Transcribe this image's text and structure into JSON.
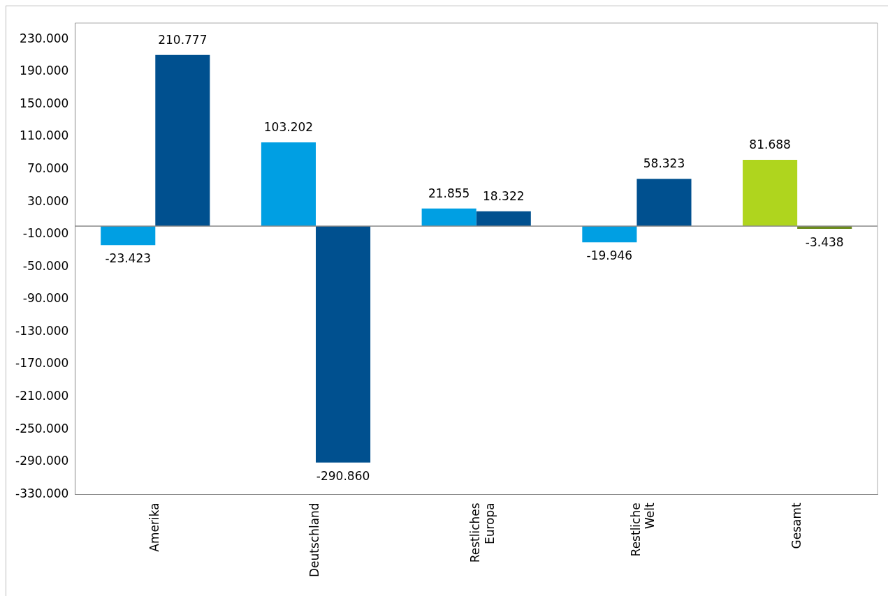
{
  "chart_data": {
    "type": "bar",
    "categories": [
      "Amerika",
      "Deutschland",
      "Restliches Europa",
      "Restliche Welt",
      "Gesamt"
    ],
    "series": [
      {
        "colors": [
          "#009fe3",
          "#009fe3",
          "#009fe3",
          "#009fe3",
          "#afd51e"
        ],
        "values": [
          -23423,
          103202,
          21855,
          -19946,
          81688
        ],
        "value_labels": [
          "-23.423",
          "103.202",
          "21.855",
          "-19.946",
          "81.688"
        ]
      },
      {
        "colors": [
          "#00508f",
          "#00508f",
          "#00508f",
          "#00508f",
          "#6c8c1e"
        ],
        "values": [
          210777,
          -290860,
          18322,
          58323,
          -3438
        ],
        "value_labels": [
          "210.777",
          "-290.860",
          "18.322",
          "58.323",
          "-3.438"
        ]
      }
    ],
    "ylim": [
      -330000,
      250000
    ],
    "yticks": [
      {
        "value": -330000,
        "label": "-330.000"
      },
      {
        "value": -290000,
        "label": "-290.000"
      },
      {
        "value": -250000,
        "label": "-250.000"
      },
      {
        "value": -210000,
        "label": "-210.000"
      },
      {
        "value": -170000,
        "label": "-170.000"
      },
      {
        "value": -130000,
        "label": "-130.000"
      },
      {
        "value": -90000,
        "label": "-90.000"
      },
      {
        "value": -50000,
        "label": "-50.000"
      },
      {
        "value": -10000,
        "label": "-10.000"
      },
      {
        "value": 30000,
        "label": "30.000"
      },
      {
        "value": 70000,
        "label": "70.000"
      },
      {
        "value": 110000,
        "label": "110.000"
      },
      {
        "value": 150000,
        "label": "150.000"
      },
      {
        "value": 190000,
        "label": "190.000"
      },
      {
        "value": 230000,
        "label": "230.000"
      }
    ],
    "grid": false,
    "legend": false
  }
}
